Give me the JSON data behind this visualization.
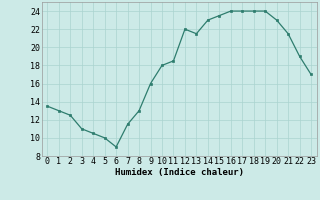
{
  "x": [
    0,
    1,
    2,
    3,
    4,
    5,
    6,
    7,
    8,
    9,
    10,
    11,
    12,
    13,
    14,
    15,
    16,
    17,
    18,
    19,
    20,
    21,
    22,
    23
  ],
  "y": [
    13.5,
    13.0,
    12.5,
    11.0,
    10.5,
    10.0,
    9.0,
    11.5,
    13.0,
    16.0,
    18.0,
    18.5,
    22.0,
    21.5,
    23.0,
    23.5,
    24.0,
    24.0,
    24.0,
    24.0,
    23.0,
    21.5,
    19.0,
    17.0
  ],
  "line_color": "#2e7d6e",
  "marker_color": "#2e7d6e",
  "bg_color": "#cceae7",
  "grid_color": "#aad4d0",
  "xlabel": "Humidex (Indice chaleur)",
  "xlim": [
    -0.5,
    23.5
  ],
  "ylim": [
    8,
    25
  ],
  "yticks": [
    8,
    10,
    12,
    14,
    16,
    18,
    20,
    22,
    24
  ],
  "xticks": [
    0,
    1,
    2,
    3,
    4,
    5,
    6,
    7,
    8,
    9,
    10,
    11,
    12,
    13,
    14,
    15,
    16,
    17,
    18,
    19,
    20,
    21,
    22,
    23
  ],
  "xlabel_fontsize": 6.5,
  "tick_fontsize": 6.0
}
